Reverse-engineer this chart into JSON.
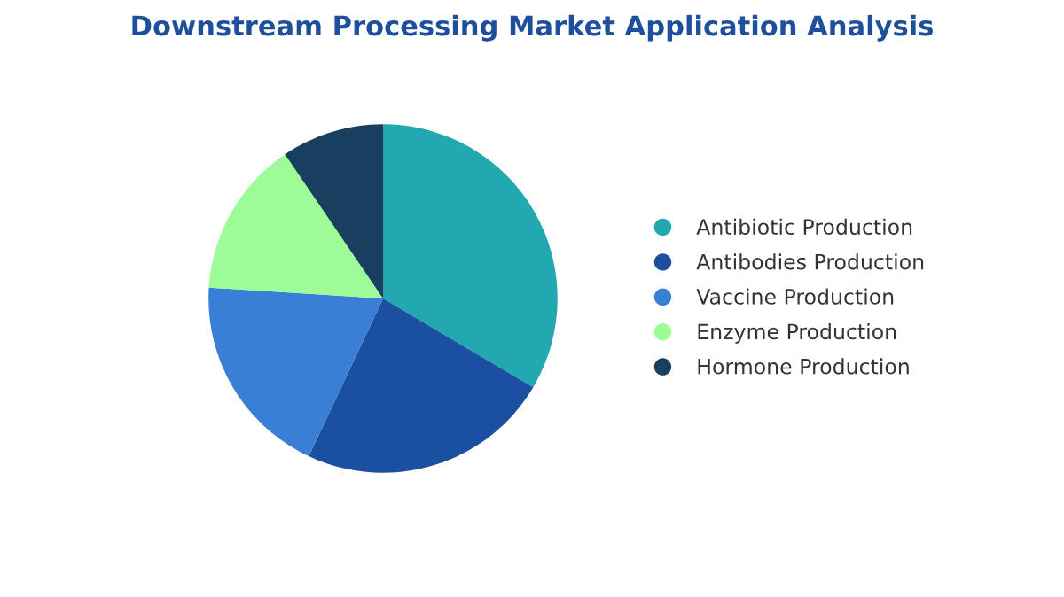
{
  "chart_data": {
    "type": "pie",
    "title": "Downstream Processing Market Application Analysis",
    "categories": [
      "Antibiotic Production",
      "Antibodies Production",
      "Vaccine Production",
      "Enzyme Production",
      "Hormone Production"
    ],
    "values": [
      33.5,
      23.5,
      19,
      14.5,
      9.5
    ],
    "colors": [
      "#22a8b0",
      "#1b4fa0",
      "#3a7fd6",
      "#9dfc98",
      "#18405e"
    ],
    "legend": "right"
  }
}
